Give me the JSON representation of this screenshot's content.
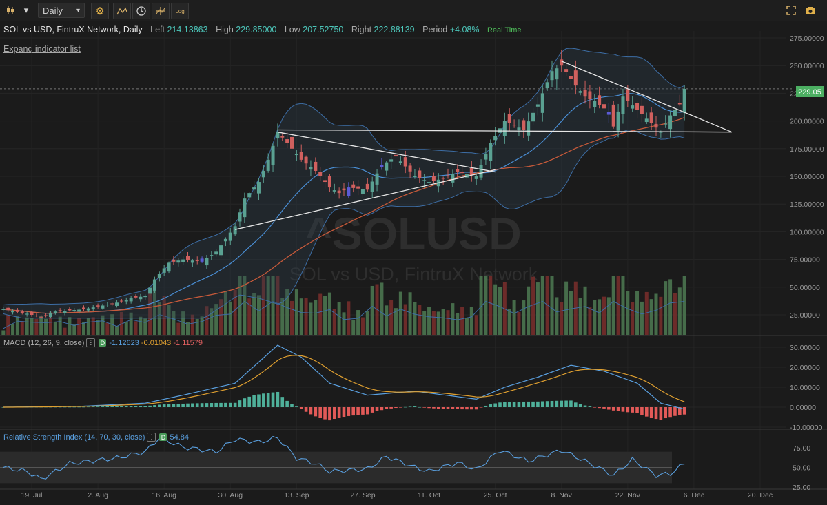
{
  "toolbar": {
    "interval": "Daily",
    "log_label": "Log"
  },
  "legend": {
    "symbol": "SOL vs USD, FintruX Network, Daily",
    "left_label": "Left",
    "left_value": "214.13863",
    "high_label": "High",
    "high_value": "229.85000",
    "low_label": "Low",
    "low_value": "207.52750",
    "right_label": "Right",
    "right_value": "222.88139",
    "period_label": "Period",
    "period_value": "+4.08%",
    "realtime": "Real Time"
  },
  "expand_label": "Expand indicator list",
  "watermark": {
    "symbol": "^SOLUSD",
    "name": "SOL vs USD, FintruX Network"
  },
  "price_badge": "229.05",
  "colors": {
    "up": "#5aa192",
    "down": "#d0605e",
    "highlight": "#5b5bd6",
    "bb": "#3d6ea6",
    "ma": "#c85a3a"
  },
  "chart_data": [
    {
      "type": "candlestick",
      "x_ticks": [
        "19. Jul",
        "2. Aug",
        "16. Aug",
        "30. Aug",
        "13. Sep",
        "27. Sep",
        "11. Oct",
        "25. Oct",
        "8. Nov",
        "22. Nov",
        "6. Dec",
        "20. Dec"
      ],
      "y_ticks": [
        "275.00000",
        "250.00000",
        "225.00000",
        "200.00000",
        "175.00000",
        "150.00000",
        "125.00000",
        "100.00000",
        "75.00000",
        "50.00000",
        "25.00000"
      ],
      "ylim": [
        20,
        285
      ],
      "price_anchors": [
        [
          "2021-07-13",
          30
        ],
        [
          "2021-07-18",
          26
        ],
        [
          "2021-07-21",
          23
        ],
        [
          "2021-07-24",
          28
        ],
        [
          "2021-07-30",
          30
        ],
        [
          "2021-08-06",
          36
        ],
        [
          "2021-08-09",
          40
        ],
        [
          "2021-08-12",
          42
        ],
        [
          "2021-08-14",
          57
        ],
        [
          "2021-08-17",
          72
        ],
        [
          "2021-08-20",
          75
        ],
        [
          "2021-08-24",
          73
        ],
        [
          "2021-08-27",
          82
        ],
        [
          "2021-08-31",
          105
        ],
        [
          "2021-09-02",
          130
        ],
        [
          "2021-09-05",
          145
        ],
        [
          "2021-09-07",
          165
        ],
        [
          "2021-09-09",
          190
        ],
        [
          "2021-09-11",
          180
        ],
        [
          "2021-09-14",
          165
        ],
        [
          "2021-09-17",
          155
        ],
        [
          "2021-09-20",
          140
        ],
        [
          "2021-09-22",
          135
        ],
        [
          "2021-09-24",
          140
        ],
        [
          "2021-09-28",
          138
        ],
        [
          "2021-10-01",
          160
        ],
        [
          "2021-10-04",
          168
        ],
        [
          "2021-10-08",
          150
        ],
        [
          "2021-10-11",
          145
        ],
        [
          "2021-10-14",
          148
        ],
        [
          "2021-10-17",
          154
        ],
        [
          "2021-10-21",
          150
        ],
        [
          "2021-10-24",
          180
        ],
        [
          "2021-10-27",
          200
        ],
        [
          "2021-10-31",
          192
        ],
        [
          "2021-11-03",
          215
        ],
        [
          "2021-11-06",
          245
        ],
        [
          "2021-11-08",
          250
        ],
        [
          "2021-11-11",
          232
        ],
        [
          "2021-11-13",
          222
        ],
        [
          "2021-11-15",
          218
        ],
        [
          "2021-11-18",
          208
        ],
        [
          "2021-11-19",
          195
        ],
        [
          "2021-11-21",
          222
        ],
        [
          "2021-11-24",
          210
        ],
        [
          "2021-11-27",
          198
        ],
        [
          "2021-11-29",
          190
        ],
        [
          "2021-12-01",
          205
        ],
        [
          "2021-12-03",
          215
        ],
        [
          "2021-12-04",
          229
        ]
      ],
      "highlight_dates": [
        "2021-08-24",
        "2021-09-24",
        "2021-10-01",
        "2021-11-18"
      ],
      "indicators": [
        "Bollinger Bands",
        "Moving Average",
        "Volume"
      ],
      "trendlines": [
        {
          "from": [
            "2021-09-09",
            192
          ],
          "to": [
            "2021-12-14",
            190
          ]
        },
        {
          "from": [
            "2021-09-09",
            190
          ],
          "to": [
            "2021-10-25",
            154
          ]
        },
        {
          "from": [
            "2021-08-31",
            102
          ],
          "to": [
            "2021-10-25",
            156
          ]
        },
        {
          "from": [
            "2021-11-08",
            254
          ],
          "to": [
            "2021-12-14",
            190
          ]
        }
      ],
      "last_price": 229.05
    },
    {
      "type": "line",
      "name": "MACD (12, 26, 9, close)",
      "values_label": [
        "-1.12623",
        "-0.01043",
        "-1.11579"
      ],
      "y_ticks": [
        "30.00000",
        "20.00000",
        "10.00000",
        "0.00000",
        "-10.00000"
      ],
      "ylim": [
        -10,
        32
      ],
      "macd_anchors": [
        [
          "2021-07-13",
          0
        ],
        [
          "2021-07-30",
          0.5
        ],
        [
          "2021-08-12",
          2
        ],
        [
          "2021-08-20",
          6
        ],
        [
          "2021-08-31",
          12
        ],
        [
          "2021-09-09",
          31
        ],
        [
          "2021-09-14",
          25
        ],
        [
          "2021-09-20",
          12
        ],
        [
          "2021-09-28",
          6
        ],
        [
          "2021-10-08",
          8
        ],
        [
          "2021-10-21",
          4
        ],
        [
          "2021-10-27",
          10
        ],
        [
          "2021-11-03",
          15
        ],
        [
          "2021-11-10",
          21
        ],
        [
          "2021-11-17",
          18
        ],
        [
          "2021-11-24",
          12
        ],
        [
          "2021-11-29",
          2
        ],
        [
          "2021-12-04",
          -1
        ]
      ]
    },
    {
      "type": "line",
      "name": "Relative Strength Index (14, 70, 30, close)",
      "value_label": "54.84",
      "y_ticks": [
        "75.00",
        "50.00",
        "25.00"
      ],
      "ylim": [
        23,
        90
      ],
      "rsi_anchors": [
        [
          "2021-07-13",
          50
        ],
        [
          "2021-07-18",
          45
        ],
        [
          "2021-07-21",
          35
        ],
        [
          "2021-07-27",
          55
        ],
        [
          "2021-08-06",
          62
        ],
        [
          "2021-08-12",
          70
        ],
        [
          "2021-08-15",
          88
        ],
        [
          "2021-08-20",
          76
        ],
        [
          "2021-08-27",
          70
        ],
        [
          "2021-08-31",
          86
        ],
        [
          "2021-09-05",
          82
        ],
        [
          "2021-09-09",
          88
        ],
        [
          "2021-09-13",
          62
        ],
        [
          "2021-09-17",
          55
        ],
        [
          "2021-09-20",
          45
        ],
        [
          "2021-09-28",
          48
        ],
        [
          "2021-10-02",
          64
        ],
        [
          "2021-10-08",
          50
        ],
        [
          "2021-10-11",
          45
        ],
        [
          "2021-10-17",
          56
        ],
        [
          "2021-10-21",
          47
        ],
        [
          "2021-10-26",
          72
        ],
        [
          "2021-11-01",
          58
        ],
        [
          "2021-11-08",
          72
        ],
        [
          "2021-11-13",
          58
        ],
        [
          "2021-11-19",
          40
        ],
        [
          "2021-11-23",
          60
        ],
        [
          "2021-11-28",
          40
        ],
        [
          "2021-12-01",
          42
        ],
        [
          "2021-12-04",
          55
        ]
      ],
      "overbought": 70,
      "oversold": 30
    }
  ]
}
